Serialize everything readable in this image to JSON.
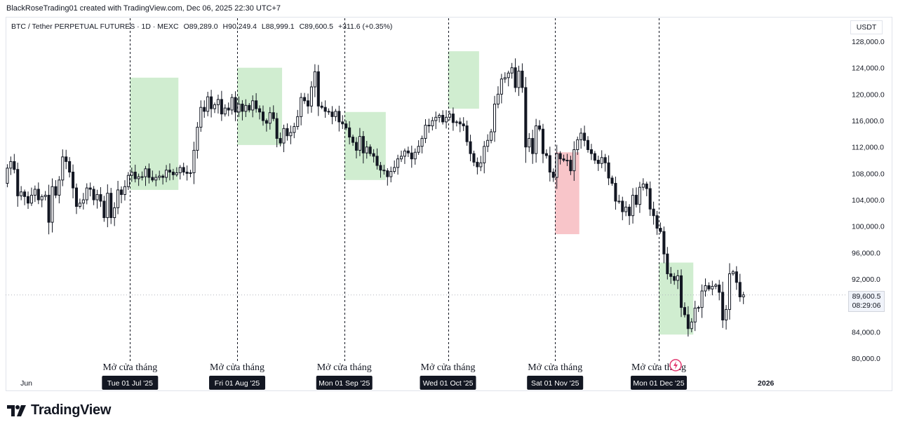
{
  "header": {
    "credit": "BlackRoseTrading01 created with TradingView.com, Dec 06, 2025 22:30 UTC+7"
  },
  "legend": {
    "symbol": "BTC / Tether PERPETUAL FUTURES · 1D · MEXC",
    "open": "O89,289.0",
    "high": "H90,249.4",
    "low": "L88,999.1",
    "close": "C89,600.5",
    "change": "+311.6 (+0.35%)"
  },
  "price_axis": {
    "currency": "USDT",
    "last_price": "89,600.5",
    "countdown": "08:29:06"
  },
  "branding": {
    "logo_text": "TradingView"
  },
  "colors": {
    "candle": "#131722",
    "green_zone": "#cdeccd",
    "red_zone": "#f8c2c6",
    "label_bg": "#131722",
    "accent_icon": "#e2366e"
  },
  "chart_data": {
    "type": "candlestick",
    "ylim": [
      78000,
      131500
    ],
    "y_ticks": [
      {
        "value": 128000,
        "label": "128,000.0"
      },
      {
        "value": 124000,
        "label": "124,000.0"
      },
      {
        "value": 120000,
        "label": "120,000.0"
      },
      {
        "value": 116000,
        "label": "116,000.0"
      },
      {
        "value": 112000,
        "label": "112,000.0"
      },
      {
        "value": 108000,
        "label": "108,000.0"
      },
      {
        "value": 104000,
        "label": "104,000.0"
      },
      {
        "value": 100000,
        "label": "100,000.0"
      },
      {
        "value": 96000,
        "label": "96,000.0"
      },
      {
        "value": 92000,
        "label": "92,000.0"
      },
      {
        "value": 84000,
        "label": "84,000.0"
      },
      {
        "value": 80000,
        "label": "80,000.0"
      }
    ],
    "x_range": [
      "2025-05-26",
      "2026-01-24"
    ],
    "x_axis_labels": [
      {
        "date": "2025-06-01",
        "label": "Jun"
      },
      {
        "date": "2026-01-01",
        "label": "2026"
      }
    ],
    "month_markers": [
      {
        "date": "2025-07-01",
        "label": "Tue 01 Jul '25",
        "annotation": "Mở cửa tháng"
      },
      {
        "date": "2025-08-01",
        "label": "Fri 01 Aug '25",
        "annotation": "Mở cửa tháng"
      },
      {
        "date": "2025-09-01",
        "label": "Mon 01 Sep '25",
        "annotation": "Mở cửa tháng"
      },
      {
        "date": "2025-10-01",
        "label": "Wed 01 Oct '25",
        "annotation": "Mở cửa tháng"
      },
      {
        "date": "2025-11-01",
        "label": "Sat 01 Nov '25",
        "annotation": "Mở cửa tháng"
      },
      {
        "date": "2025-12-01",
        "label": "Mon 01 Dec '25",
        "annotation": "Mở cửa tháng"
      }
    ],
    "zones": [
      {
        "color": "green",
        "start": "2025-07-01",
        "end": "2025-07-14",
        "top": 122500,
        "bottom": 105500
      },
      {
        "color": "green",
        "start": "2025-08-01",
        "end": "2025-08-13",
        "top": 124000,
        "bottom": 112300
      },
      {
        "color": "green",
        "start": "2025-09-01",
        "end": "2025-09-12",
        "top": 117300,
        "bottom": 107000
      },
      {
        "color": "green",
        "start": "2025-10-01",
        "end": "2025-10-09",
        "top": 126500,
        "bottom": 117800
      },
      {
        "color": "red",
        "start": "2025-11-01",
        "end": "2025-11-07",
        "top": 111200,
        "bottom": 98800
      },
      {
        "color": "green",
        "start": "2025-12-01",
        "end": "2025-12-10",
        "top": 94500,
        "bottom": 83600
      }
    ],
    "series": [
      {
        "close": [
          108800,
          109800,
          108600,
          104600,
          105200,
          104500,
          103500,
          104700,
          105600,
          104000,
          104500,
          104700,
          100600,
          106000,
          104700,
          107000,
          110500,
          109800,
          108200,
          105800,
          103000,
          103500,
          104000,
          105800,
          105600,
          104000,
          104800,
          103800,
          101300,
          105000,
          101300,
          102800,
          105500,
          104800,
          106000,
          107700,
          108200,
          107200,
          107500,
          107500,
          108700,
          107400,
          107000,
          107400,
          107600,
          107400,
          108500,
          108200,
          107800,
          108100,
          108900,
          108200,
          108000,
          108100,
          111500,
          115000,
          118000,
          117400,
          119600,
          117800,
          118400,
          119200,
          117000,
          117900,
          117600,
          119500,
          117300,
          118500,
          117400,
          118300,
          117600,
          119000,
          117800,
          117300,
          116000,
          115600,
          117200,
          116300,
          113300,
          112600,
          114800,
          113700,
          114200,
          115100,
          116600,
          119500,
          119000,
          118200,
          121100,
          123400,
          118200,
          118000,
          117400,
          117300,
          116600,
          117400,
          115800,
          115500,
          114900,
          113500,
          112700,
          111500,
          113600,
          111100,
          112000,
          111000,
          110600,
          109200,
          108500,
          108400,
          107500,
          108300,
          108900,
          110200,
          110600,
          111400,
          111100,
          110200,
          111200,
          112100,
          113300,
          115300,
          115200,
          116000,
          116500,
          116800,
          115800,
          116500,
          117000,
          115700,
          115800,
          115500,
          115200,
          112800,
          111000,
          109700,
          109000,
          109600,
          112100,
          113000,
          114300,
          118500,
          120000,
          122300,
          122500,
          123200,
          124000,
          121000,
          123500,
          121000,
          112000,
          113300,
          111000,
          115200,
          114700,
          111000,
          110700,
          108200,
          107400,
          111000,
          110200,
          110000,
          110000,
          108400,
          111600,
          113100,
          114100,
          113000,
          111600,
          111000,
          110000,
          109500,
          110400,
          109600,
          107300,
          106500,
          103800,
          103800,
          102200,
          102900,
          101600,
          104700,
          103300,
          105900,
          106400,
          105700,
          102600,
          101600,
          99700,
          99200,
          95800,
          92800,
          92400,
          91800,
          92500,
          87700,
          86600,
          84500,
          85500,
          87600,
          87700,
          90200,
          91000,
          90500,
          90900,
          91100,
          90000,
          85800,
          87400,
          92800,
          93100,
          91500,
          89300,
          89600
        ]
      }
    ]
  }
}
